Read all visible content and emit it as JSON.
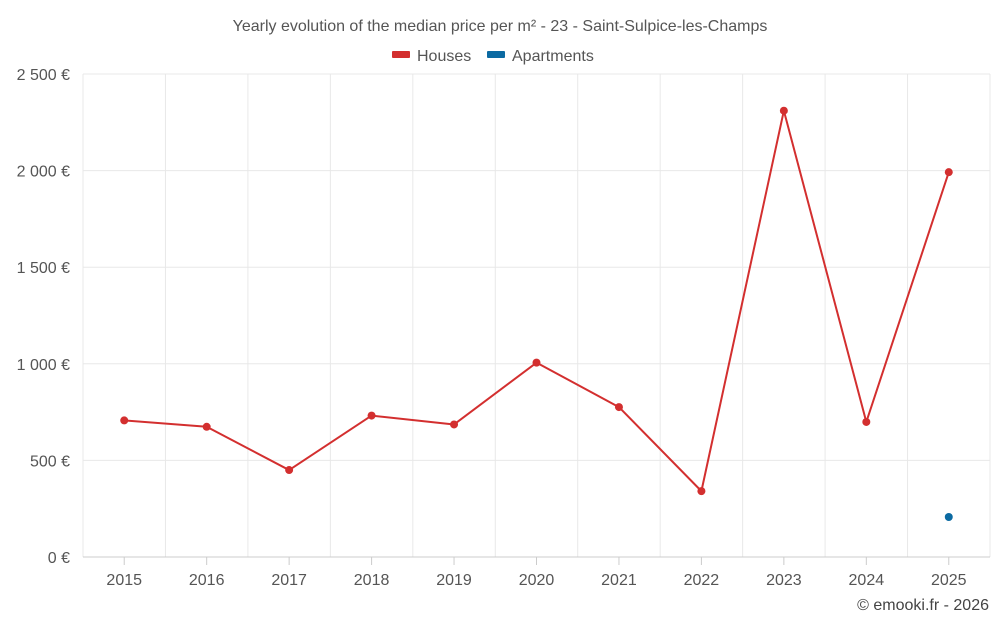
{
  "chart_data": {
    "type": "line",
    "title": "Yearly evolution of the median price per m² - 23 - Saint-Sulpice-les-Champs",
    "categories": [
      "2015",
      "2016",
      "2017",
      "2018",
      "2019",
      "2020",
      "2021",
      "2022",
      "2023",
      "2024",
      "2025"
    ],
    "series": [
      {
        "name": "Houses",
        "color": "#d32f2f",
        "values": [
          707,
          674,
          450,
          732,
          686,
          1006,
          776,
          341,
          2310,
          699,
          1992
        ]
      },
      {
        "name": "Apartments",
        "color": "#0b6aa2",
        "values": [
          null,
          null,
          null,
          null,
          null,
          null,
          null,
          null,
          null,
          null,
          207
        ]
      }
    ],
    "ylim": [
      0,
      2500
    ],
    "yticks": [
      0,
      500,
      1000,
      1500,
      2000,
      2500
    ],
    "ytick_labels": [
      "0 €",
      "500 €",
      "1 000 €",
      "1 500 €",
      "2 000 €",
      "2 500 €"
    ],
    "xlabel": "",
    "ylabel": "",
    "grid": true,
    "legend_position": "top-center"
  },
  "credit": "© emooki.fr - 2026"
}
